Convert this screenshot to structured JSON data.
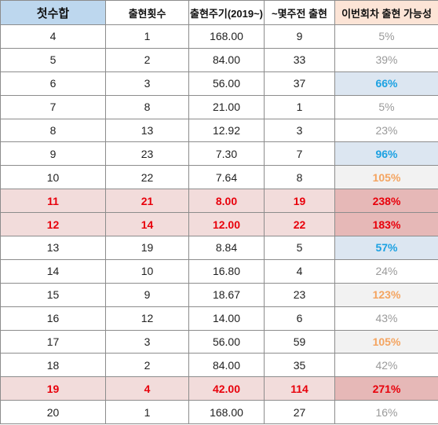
{
  "headers": [
    "첫수합",
    "출현횟수",
    "출현주기(2019~)",
    "~몇주전 출현",
    "이번회차 출현 가능성"
  ],
  "rows": [
    {
      "sum": "4",
      "count": "1",
      "cycle": "168.00",
      "weeks_ago": "9",
      "probability": "5%",
      "prob_style": "gray",
      "highlight": false
    },
    {
      "sum": "5",
      "count": "2",
      "cycle": "84.00",
      "weeks_ago": "33",
      "probability": "39%",
      "prob_style": "gray",
      "highlight": false
    },
    {
      "sum": "6",
      "count": "3",
      "cycle": "56.00",
      "weeks_ago": "37",
      "probability": "66%",
      "prob_style": "blue",
      "highlight": false
    },
    {
      "sum": "7",
      "count": "8",
      "cycle": "21.00",
      "weeks_ago": "1",
      "probability": "5%",
      "prob_style": "gray",
      "highlight": false
    },
    {
      "sum": "8",
      "count": "13",
      "cycle": "12.92",
      "weeks_ago": "3",
      "probability": "23%",
      "prob_style": "gray",
      "highlight": false
    },
    {
      "sum": "9",
      "count": "23",
      "cycle": "7.30",
      "weeks_ago": "7",
      "probability": "96%",
      "prob_style": "blue",
      "highlight": false
    },
    {
      "sum": "10",
      "count": "22",
      "cycle": "7.64",
      "weeks_ago": "8",
      "probability": "105%",
      "prob_style": "orange",
      "highlight": false
    },
    {
      "sum": "11",
      "count": "21",
      "cycle": "8.00",
      "weeks_ago": "19",
      "probability": "238%",
      "prob_style": "red",
      "highlight": true
    },
    {
      "sum": "12",
      "count": "14",
      "cycle": "12.00",
      "weeks_ago": "22",
      "probability": "183%",
      "prob_style": "red",
      "highlight": true
    },
    {
      "sum": "13",
      "count": "19",
      "cycle": "8.84",
      "weeks_ago": "5",
      "probability": "57%",
      "prob_style": "blue",
      "highlight": false
    },
    {
      "sum": "14",
      "count": "10",
      "cycle": "16.80",
      "weeks_ago": "4",
      "probability": "24%",
      "prob_style": "gray",
      "highlight": false
    },
    {
      "sum": "15",
      "count": "9",
      "cycle": "18.67",
      "weeks_ago": "23",
      "probability": "123%",
      "prob_style": "orange",
      "highlight": false
    },
    {
      "sum": "16",
      "count": "12",
      "cycle": "14.00",
      "weeks_ago": "6",
      "probability": "43%",
      "prob_style": "gray",
      "highlight": false
    },
    {
      "sum": "17",
      "count": "3",
      "cycle": "56.00",
      "weeks_ago": "59",
      "probability": "105%",
      "prob_style": "orange",
      "highlight": false
    },
    {
      "sum": "18",
      "count": "2",
      "cycle": "84.00",
      "weeks_ago": "35",
      "probability": "42%",
      "prob_style": "gray",
      "highlight": false
    },
    {
      "sum": "19",
      "count": "4",
      "cycle": "42.00",
      "weeks_ago": "114",
      "probability": "271%",
      "prob_style": "red",
      "highlight": true
    },
    {
      "sum": "20",
      "count": "1",
      "cycle": "168.00",
      "weeks_ago": "27",
      "probability": "16%",
      "prob_style": "gray",
      "highlight": false
    }
  ]
}
